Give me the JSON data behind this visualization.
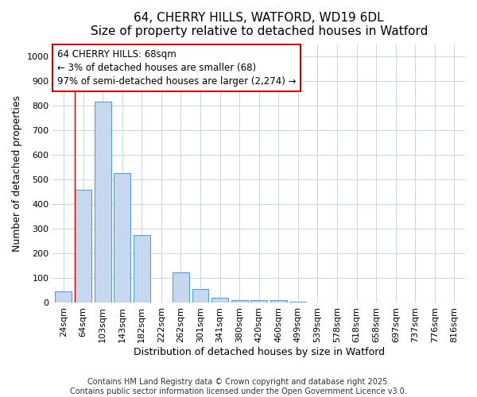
{
  "title_line1": "64, CHERRY HILLS, WATFORD, WD19 6DL",
  "title_line2": "Size of property relative to detached houses in Watford",
  "xlabel": "Distribution of detached houses by size in Watford",
  "ylabel": "Number of detached properties",
  "categories": [
    "24sqm",
    "64sqm",
    "103sqm",
    "143sqm",
    "182sqm",
    "222sqm",
    "262sqm",
    "301sqm",
    "341sqm",
    "380sqm",
    "420sqm",
    "460sqm",
    "499sqm",
    "539sqm",
    "578sqm",
    "618sqm",
    "658sqm",
    "697sqm",
    "737sqm",
    "776sqm",
    "816sqm"
  ],
  "values": [
    47,
    460,
    815,
    525,
    275,
    0,
    125,
    55,
    22,
    10,
    10,
    10,
    5,
    2,
    2,
    1,
    1,
    1,
    0,
    0,
    0
  ],
  "bar_color": "#c5d8f0",
  "bar_edge_color": "#5a9fd4",
  "vline_color": "#cc0000",
  "annotation_text": "64 CHERRY HILLS: 68sqm\n← 3% of detached houses are smaller (68)\n97% of semi-detached houses are larger (2,274) →",
  "annotation_box_color": "#ffffff",
  "annotation_box_edge": "#cc0000",
  "ylim": [
    0,
    1050
  ],
  "yticks": [
    0,
    100,
    200,
    300,
    400,
    500,
    600,
    700,
    800,
    900,
    1000
  ],
  "background_color": "#ffffff",
  "grid_color": "#c8d4e8",
  "title_fontsize": 11,
  "subtitle_fontsize": 10,
  "axis_label_fontsize": 9,
  "tick_fontsize": 8,
  "annotation_fontsize": 8.5,
  "footer_fontsize": 7,
  "footer_line1": "Contains HM Land Registry data © Crown copyright and database right 2025.",
  "footer_line2": "Contains public sector information licensed under the Open Government Licence v3.0."
}
